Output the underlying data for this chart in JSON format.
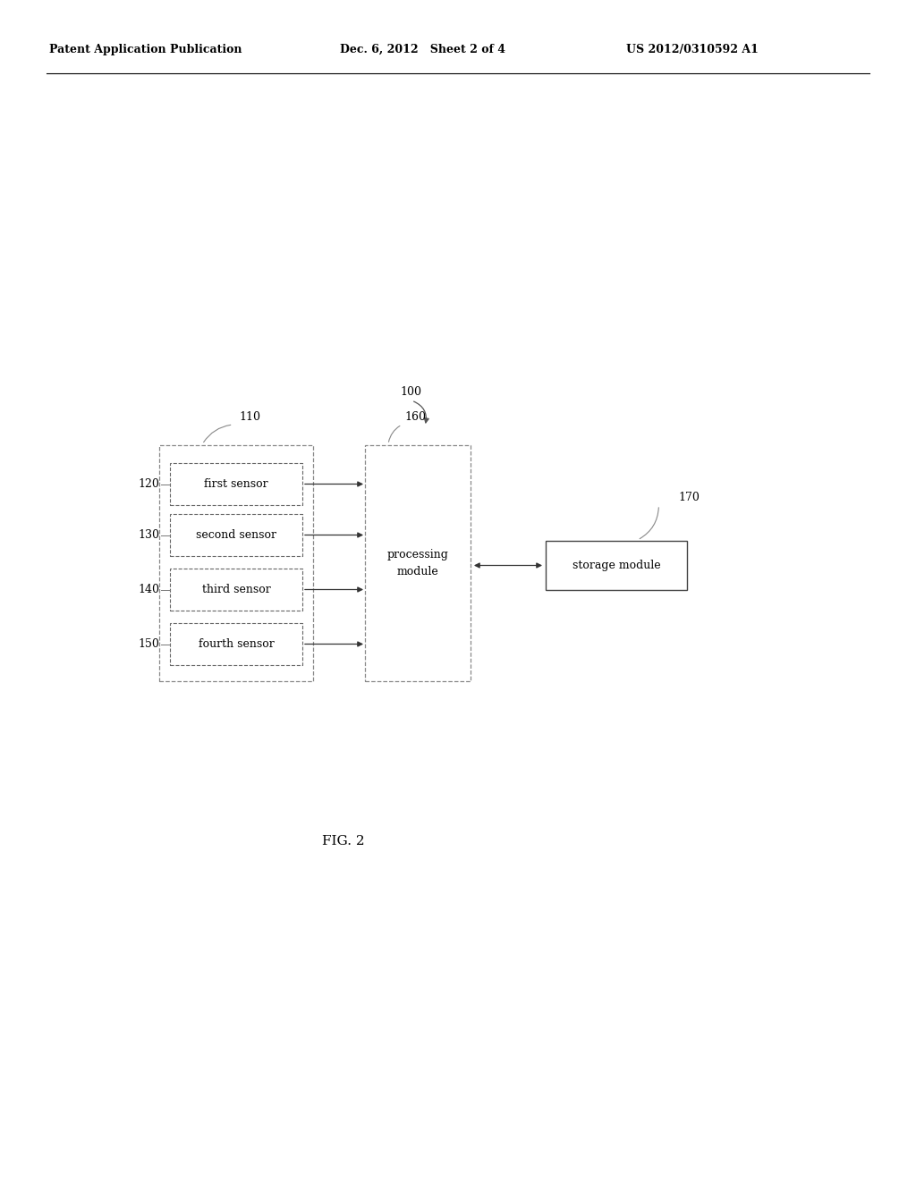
{
  "bg_color": "#ffffff",
  "header_left": "Patent Application Publication",
  "header_mid": "Dec. 6, 2012   Sheet 2 of 4",
  "header_right": "US 2012/0310592 A1",
  "fig_label": "FIG. 2",
  "label_100": "100",
  "label_110": "110",
  "label_160": "160",
  "label_170": "170",
  "label_120": "120",
  "label_130": "130",
  "label_140": "140",
  "label_150": "150",
  "sensors": [
    "first sensor",
    "second sensor",
    "third sensor",
    "fourth sensor"
  ],
  "processing_module_text": "processing\nmodule",
  "storage_module_text": "storage module"
}
